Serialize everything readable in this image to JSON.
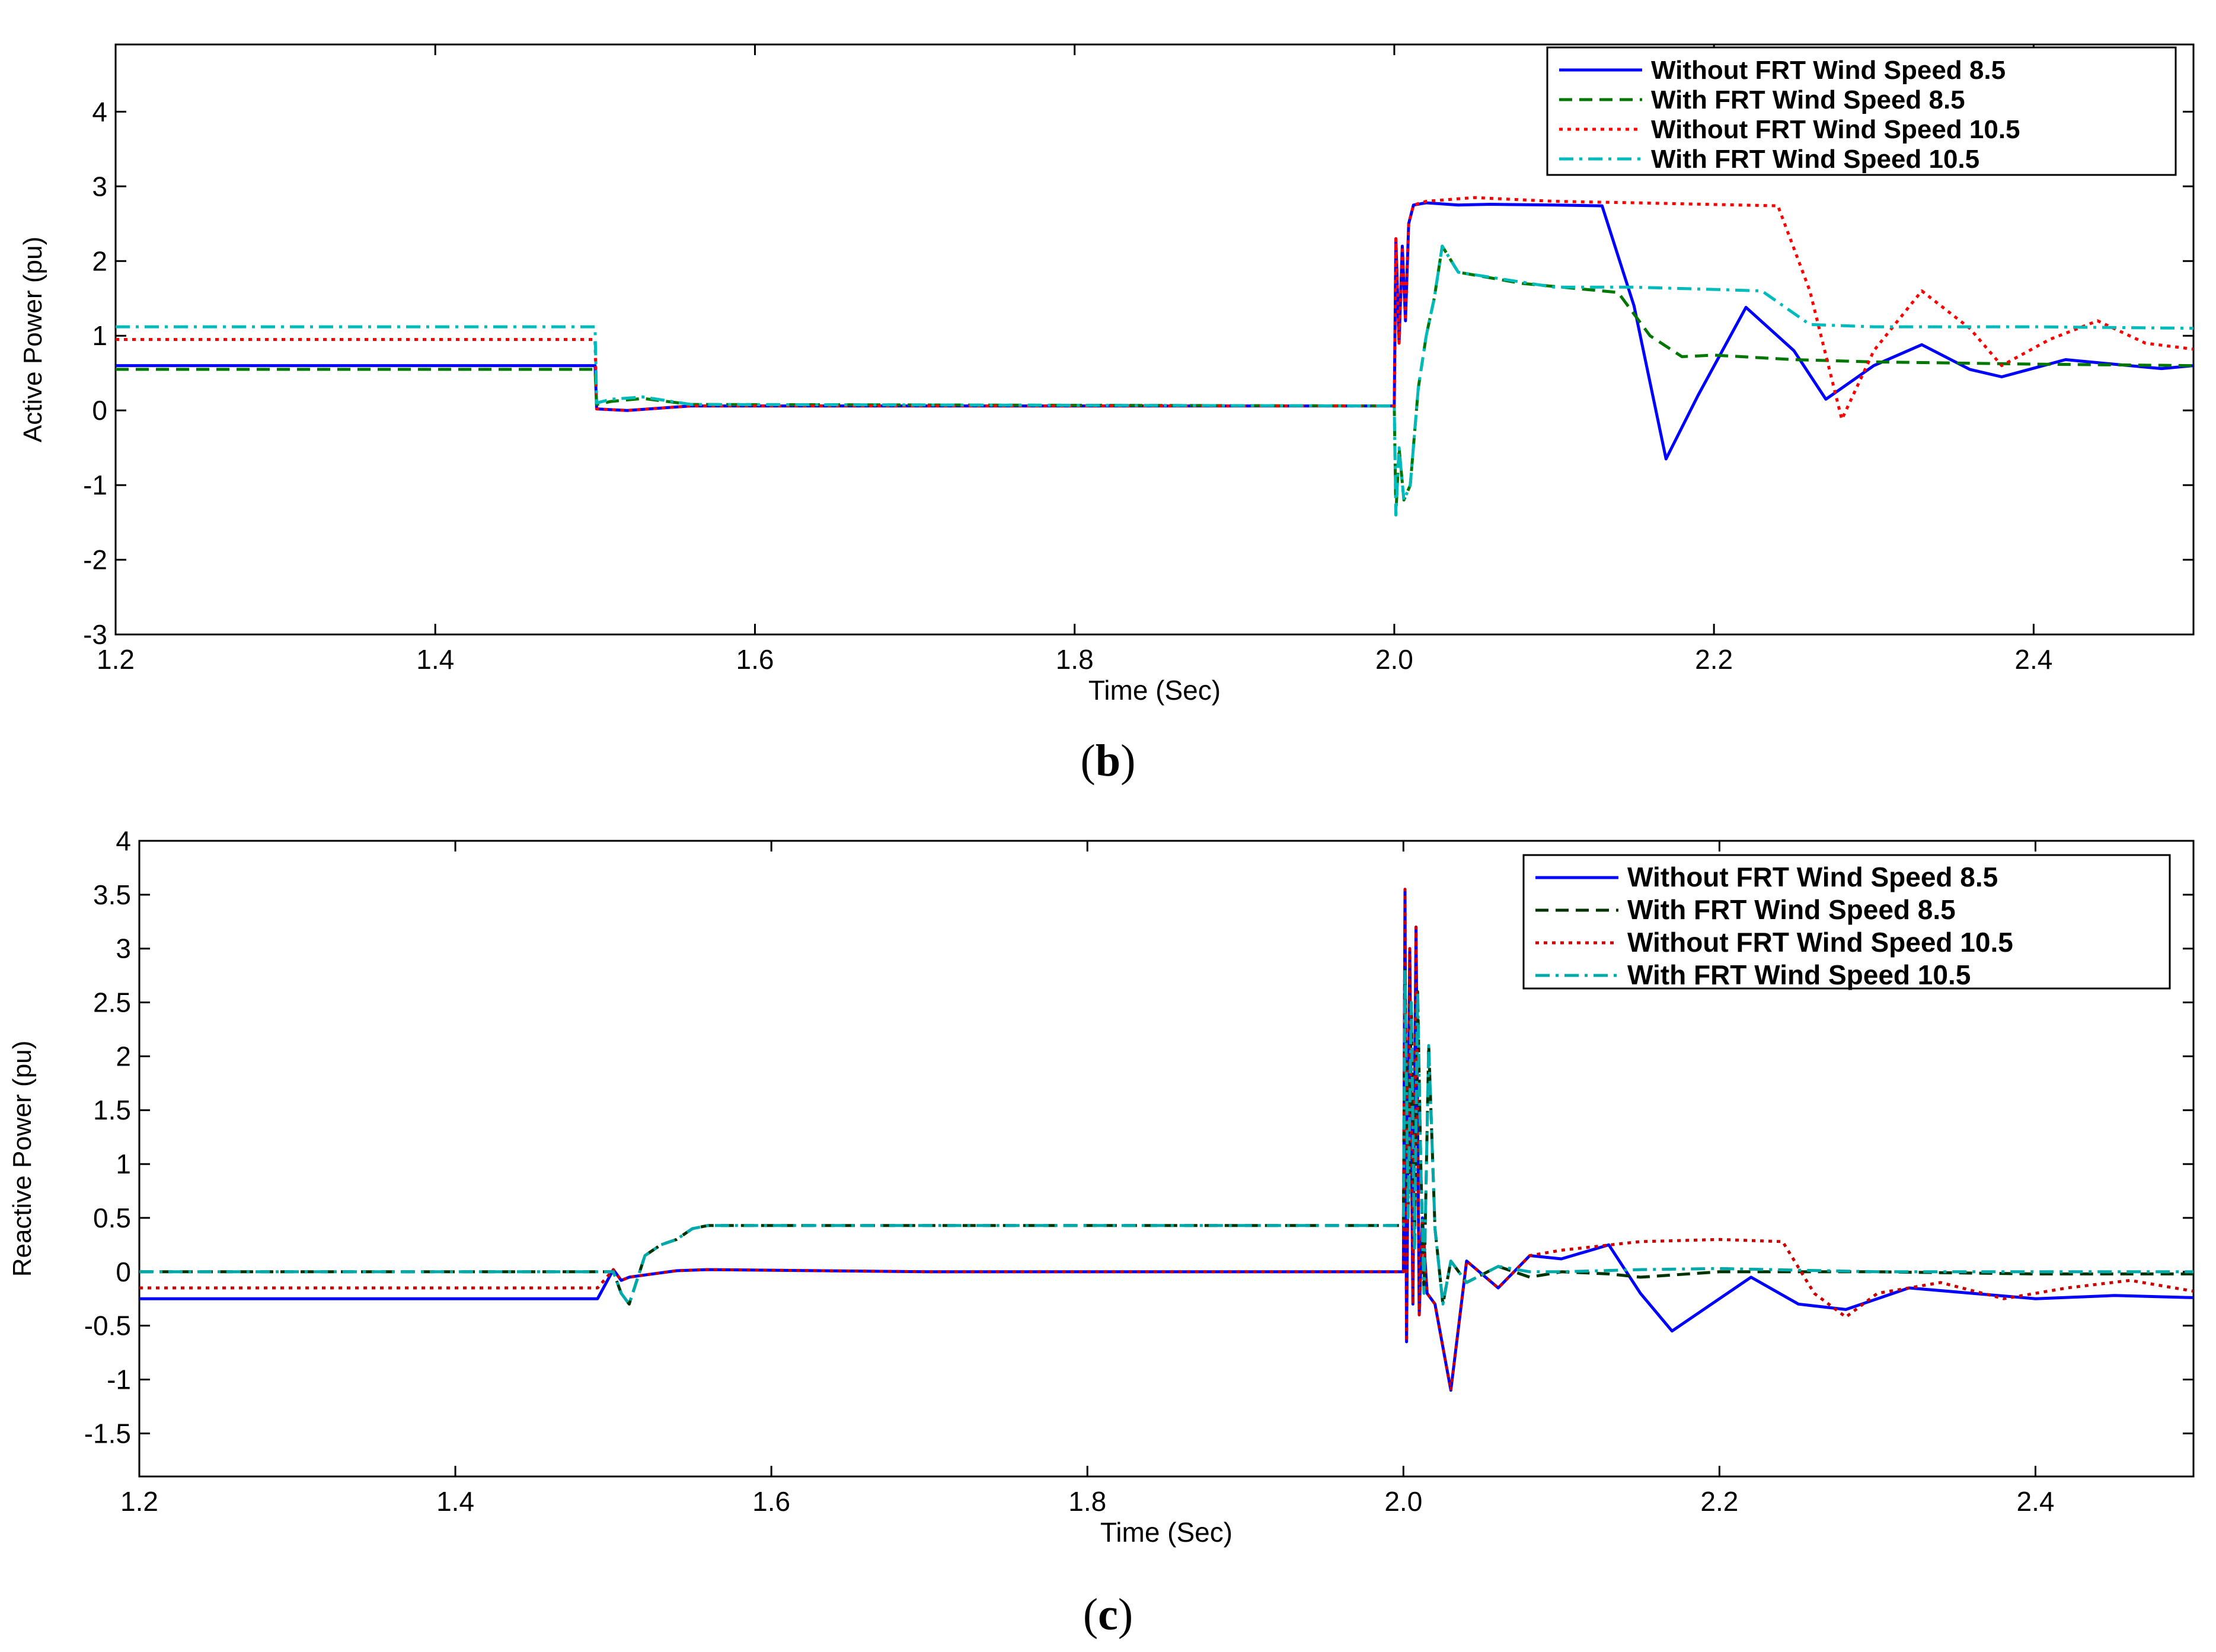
{
  "figure": {
    "caption_b": "b",
    "caption_c": "c"
  },
  "chart_data": [
    {
      "id": "b",
      "type": "line",
      "ylabel": "Active Power (pu)",
      "xlabel": "Time (Sec)",
      "xlim": [
        1.2,
        2.5
      ],
      "ylim": [
        -3,
        4.9
      ],
      "xticks": [
        1.2,
        1.4,
        1.6,
        1.8,
        2.0,
        2.2,
        2.4
      ],
      "xtick_labels": [
        "1.2",
        "1.4",
        "1.6",
        "1.8",
        "2.0",
        "2.2",
        "2.4"
      ],
      "yticks": [
        -3,
        -2,
        -1,
        0,
        1,
        2,
        3,
        4
      ],
      "ytick_labels": [
        "-3",
        "-2",
        "-1",
        "0",
        "1",
        "2",
        "3",
        "4"
      ],
      "legend_position": "top-right",
      "series": [
        {
          "name": "Without FRT Wind Speed 8.5",
          "color": "#0000ff",
          "dash": "solid",
          "x": [
            1.2,
            1.5,
            1.501,
            1.52,
            1.56,
            2.0,
            2.001,
            2.003,
            2.005,
            2.007,
            2.009,
            2.012,
            2.02,
            2.04,
            2.06,
            2.1,
            2.13,
            2.15,
            2.17,
            2.19,
            2.22,
            2.25,
            2.27,
            2.3,
            2.33,
            2.36,
            2.38,
            2.42,
            2.45,
            2.48,
            2.5
          ],
          "y": [
            0.6,
            0.6,
            0.02,
            0.0,
            0.06,
            0.06,
            2.3,
            0.9,
            2.2,
            1.2,
            2.5,
            2.75,
            2.78,
            2.75,
            2.76,
            2.75,
            2.74,
            1.4,
            -0.65,
            0.2,
            1.38,
            0.8,
            0.15,
            0.6,
            0.88,
            0.55,
            0.45,
            0.68,
            0.62,
            0.56,
            0.6
          ]
        },
        {
          "name": "With FRT Wind Speed 8.5",
          "color": "#007700",
          "dash": "dashed",
          "x": [
            1.2,
            1.5,
            1.501,
            1.51,
            1.53,
            1.56,
            2.0,
            2.001,
            2.003,
            2.006,
            2.01,
            2.015,
            2.02,
            2.025,
            2.03,
            2.04,
            2.08,
            2.12,
            2.14,
            2.16,
            2.18,
            2.2,
            2.25,
            2.3,
            2.4,
            2.5
          ],
          "y": [
            0.55,
            0.55,
            0.08,
            0.12,
            0.16,
            0.08,
            0.06,
            -1.4,
            -0.5,
            -1.2,
            -1.0,
            0.3,
            1.0,
            1.5,
            2.2,
            1.85,
            1.7,
            1.62,
            1.58,
            1.0,
            0.72,
            0.74,
            0.68,
            0.65,
            0.62,
            0.6
          ]
        },
        {
          "name": "Without FRT Wind Speed 10.5",
          "color": "#ff0000",
          "dash": "dotted",
          "x": [
            1.2,
            1.5,
            1.501,
            1.52,
            1.56,
            2.0,
            2.001,
            2.003,
            2.005,
            2.007,
            2.009,
            2.012,
            2.02,
            2.05,
            2.1,
            2.15,
            2.24,
            2.26,
            2.28,
            2.3,
            2.33,
            2.36,
            2.38,
            2.41,
            2.44,
            2.47,
            2.5
          ],
          "y": [
            0.95,
            0.95,
            0.02,
            0.0,
            0.06,
            0.06,
            2.3,
            0.9,
            2.2,
            1.2,
            2.5,
            2.75,
            2.8,
            2.85,
            2.8,
            2.78,
            2.74,
            1.6,
            -0.12,
            0.8,
            1.6,
            1.1,
            0.6,
            0.95,
            1.2,
            0.9,
            0.82
          ]
        },
        {
          "name": "With FRT Wind Speed 10.5",
          "color": "#00bbbb",
          "dash": "dashdot",
          "x": [
            1.2,
            1.5,
            1.501,
            1.51,
            1.53,
            1.56,
            2.0,
            2.001,
            2.003,
            2.006,
            2.01,
            2.015,
            2.02,
            2.025,
            2.03,
            2.04,
            2.1,
            2.15,
            2.2,
            2.23,
            2.26,
            2.3,
            2.4,
            2.5
          ],
          "y": [
            1.12,
            1.12,
            0.1,
            0.15,
            0.18,
            0.08,
            0.06,
            -1.4,
            -0.5,
            -1.2,
            -1.0,
            0.3,
            1.0,
            1.5,
            2.2,
            1.85,
            1.65,
            1.65,
            1.62,
            1.6,
            1.15,
            1.12,
            1.12,
            1.1
          ]
        }
      ]
    },
    {
      "id": "c",
      "type": "line",
      "ylabel": "Reactive Power (pu)",
      "xlabel": "Time (Sec)",
      "xlim": [
        1.2,
        2.5
      ],
      "ylim": [
        -1.9,
        4
      ],
      "xticks": [
        1.2,
        1.4,
        1.6,
        1.8,
        2.0,
        2.2,
        2.4
      ],
      "xtick_labels": [
        "1.2",
        "1.4",
        "1.6",
        "1.8",
        "2.0",
        "2.2",
        "2.4"
      ],
      "yticks": [
        -1.5,
        -1,
        -0.5,
        0,
        0.5,
        1,
        1.5,
        2,
        2.5,
        3,
        3.5,
        4
      ],
      "ytick_labels": [
        "-1.5",
        "-1",
        "-0.5",
        "0",
        "0.5",
        "1",
        "1.5",
        "2",
        "2.5",
        "3",
        "3.5",
        "4"
      ],
      "legend_position": "top-right",
      "series": [
        {
          "name": "Without FRT Wind Speed 8.5",
          "color": "#0000ff",
          "dash": "solid",
          "x": [
            1.2,
            1.49,
            1.5,
            1.505,
            1.51,
            1.52,
            1.54,
            1.56,
            1.7,
            2.0,
            2.001,
            2.002,
            2.004,
            2.006,
            2.008,
            2.01,
            2.012,
            2.015,
            2.02,
            2.03,
            2.04,
            2.06,
            2.08,
            2.1,
            2.13,
            2.15,
            2.17,
            2.2,
            2.22,
            2.25,
            2.28,
            2.32,
            2.36,
            2.4,
            2.45,
            2.5
          ],
          "y": [
            -0.25,
            -0.25,
            0.02,
            -0.08,
            -0.05,
            -0.03,
            0.01,
            0.02,
            0.0,
            0.0,
            3.55,
            -0.65,
            3.0,
            -0.3,
            3.2,
            -0.4,
            0.5,
            -0.2,
            -0.3,
            -1.1,
            0.1,
            -0.15,
            0.15,
            0.12,
            0.25,
            -0.2,
            -0.55,
            -0.25,
            -0.05,
            -0.3,
            -0.35,
            -0.15,
            -0.2,
            -0.25,
            -0.22,
            -0.24
          ]
        },
        {
          "name": "With FRT Wind Speed 8.5",
          "color": "#003300",
          "dash": "dashed",
          "x": [
            1.2,
            1.5,
            1.505,
            1.51,
            1.52,
            1.53,
            1.54,
            1.55,
            1.56,
            2.0,
            2.001,
            2.003,
            2.005,
            2.007,
            2.009,
            2.011,
            2.013,
            2.016,
            2.02,
            2.025,
            2.03,
            2.04,
            2.06,
            2.08,
            2.1,
            2.13,
            2.15,
            2.2,
            2.3,
            2.4,
            2.5
          ],
          "y": [
            0.0,
            0.0,
            -0.2,
            -0.3,
            0.15,
            0.25,
            0.3,
            0.4,
            0.43,
            0.43,
            2.8,
            0.5,
            2.5,
            0.2,
            2.6,
            1.0,
            -0.2,
            2.1,
            0.4,
            -0.3,
            0.1,
            -0.1,
            0.05,
            -0.05,
            0.0,
            -0.02,
            -0.05,
            0.0,
            0.0,
            -0.02,
            -0.02
          ]
        },
        {
          "name": "Without FRT Wind Speed 10.5",
          "color": "#cc0000",
          "dash": "dotted",
          "x": [
            1.2,
            1.49,
            1.5,
            1.505,
            1.51,
            1.52,
            1.54,
            1.56,
            1.7,
            2.0,
            2.001,
            2.002,
            2.004,
            2.006,
            2.008,
            2.01,
            2.012,
            2.015,
            2.02,
            2.03,
            2.04,
            2.06,
            2.08,
            2.1,
            2.15,
            2.2,
            2.24,
            2.26,
            2.28,
            2.3,
            2.34,
            2.38,
            2.42,
            2.46,
            2.5
          ],
          "y": [
            -0.15,
            -0.15,
            0.02,
            -0.08,
            -0.05,
            -0.03,
            0.01,
            0.02,
            0.0,
            0.0,
            3.55,
            -0.65,
            3.0,
            -0.3,
            3.2,
            -0.4,
            0.5,
            -0.2,
            -0.3,
            -1.1,
            0.1,
            -0.15,
            0.15,
            0.2,
            0.28,
            0.3,
            0.28,
            -0.2,
            -0.42,
            -0.2,
            -0.1,
            -0.25,
            -0.15,
            -0.08,
            -0.18
          ]
        },
        {
          "name": "With FRT Wind Speed 10.5",
          "color": "#00aaaa",
          "dash": "dashdot",
          "x": [
            1.2,
            1.5,
            1.505,
            1.51,
            1.52,
            1.53,
            1.54,
            1.55,
            1.56,
            2.0,
            2.001,
            2.003,
            2.005,
            2.007,
            2.009,
            2.011,
            2.013,
            2.016,
            2.02,
            2.025,
            2.03,
            2.04,
            2.06,
            2.08,
            2.1,
            2.15,
            2.2,
            2.3,
            2.4,
            2.5
          ],
          "y": [
            0.0,
            0.0,
            -0.2,
            -0.3,
            0.15,
            0.25,
            0.3,
            0.4,
            0.43,
            0.43,
            2.8,
            0.5,
            2.5,
            0.2,
            2.6,
            1.0,
            -0.2,
            2.1,
            0.4,
            -0.3,
            0.1,
            -0.1,
            0.05,
            0.0,
            0.0,
            0.02,
            0.03,
            0.0,
            0.0,
            0.0
          ]
        }
      ]
    }
  ]
}
